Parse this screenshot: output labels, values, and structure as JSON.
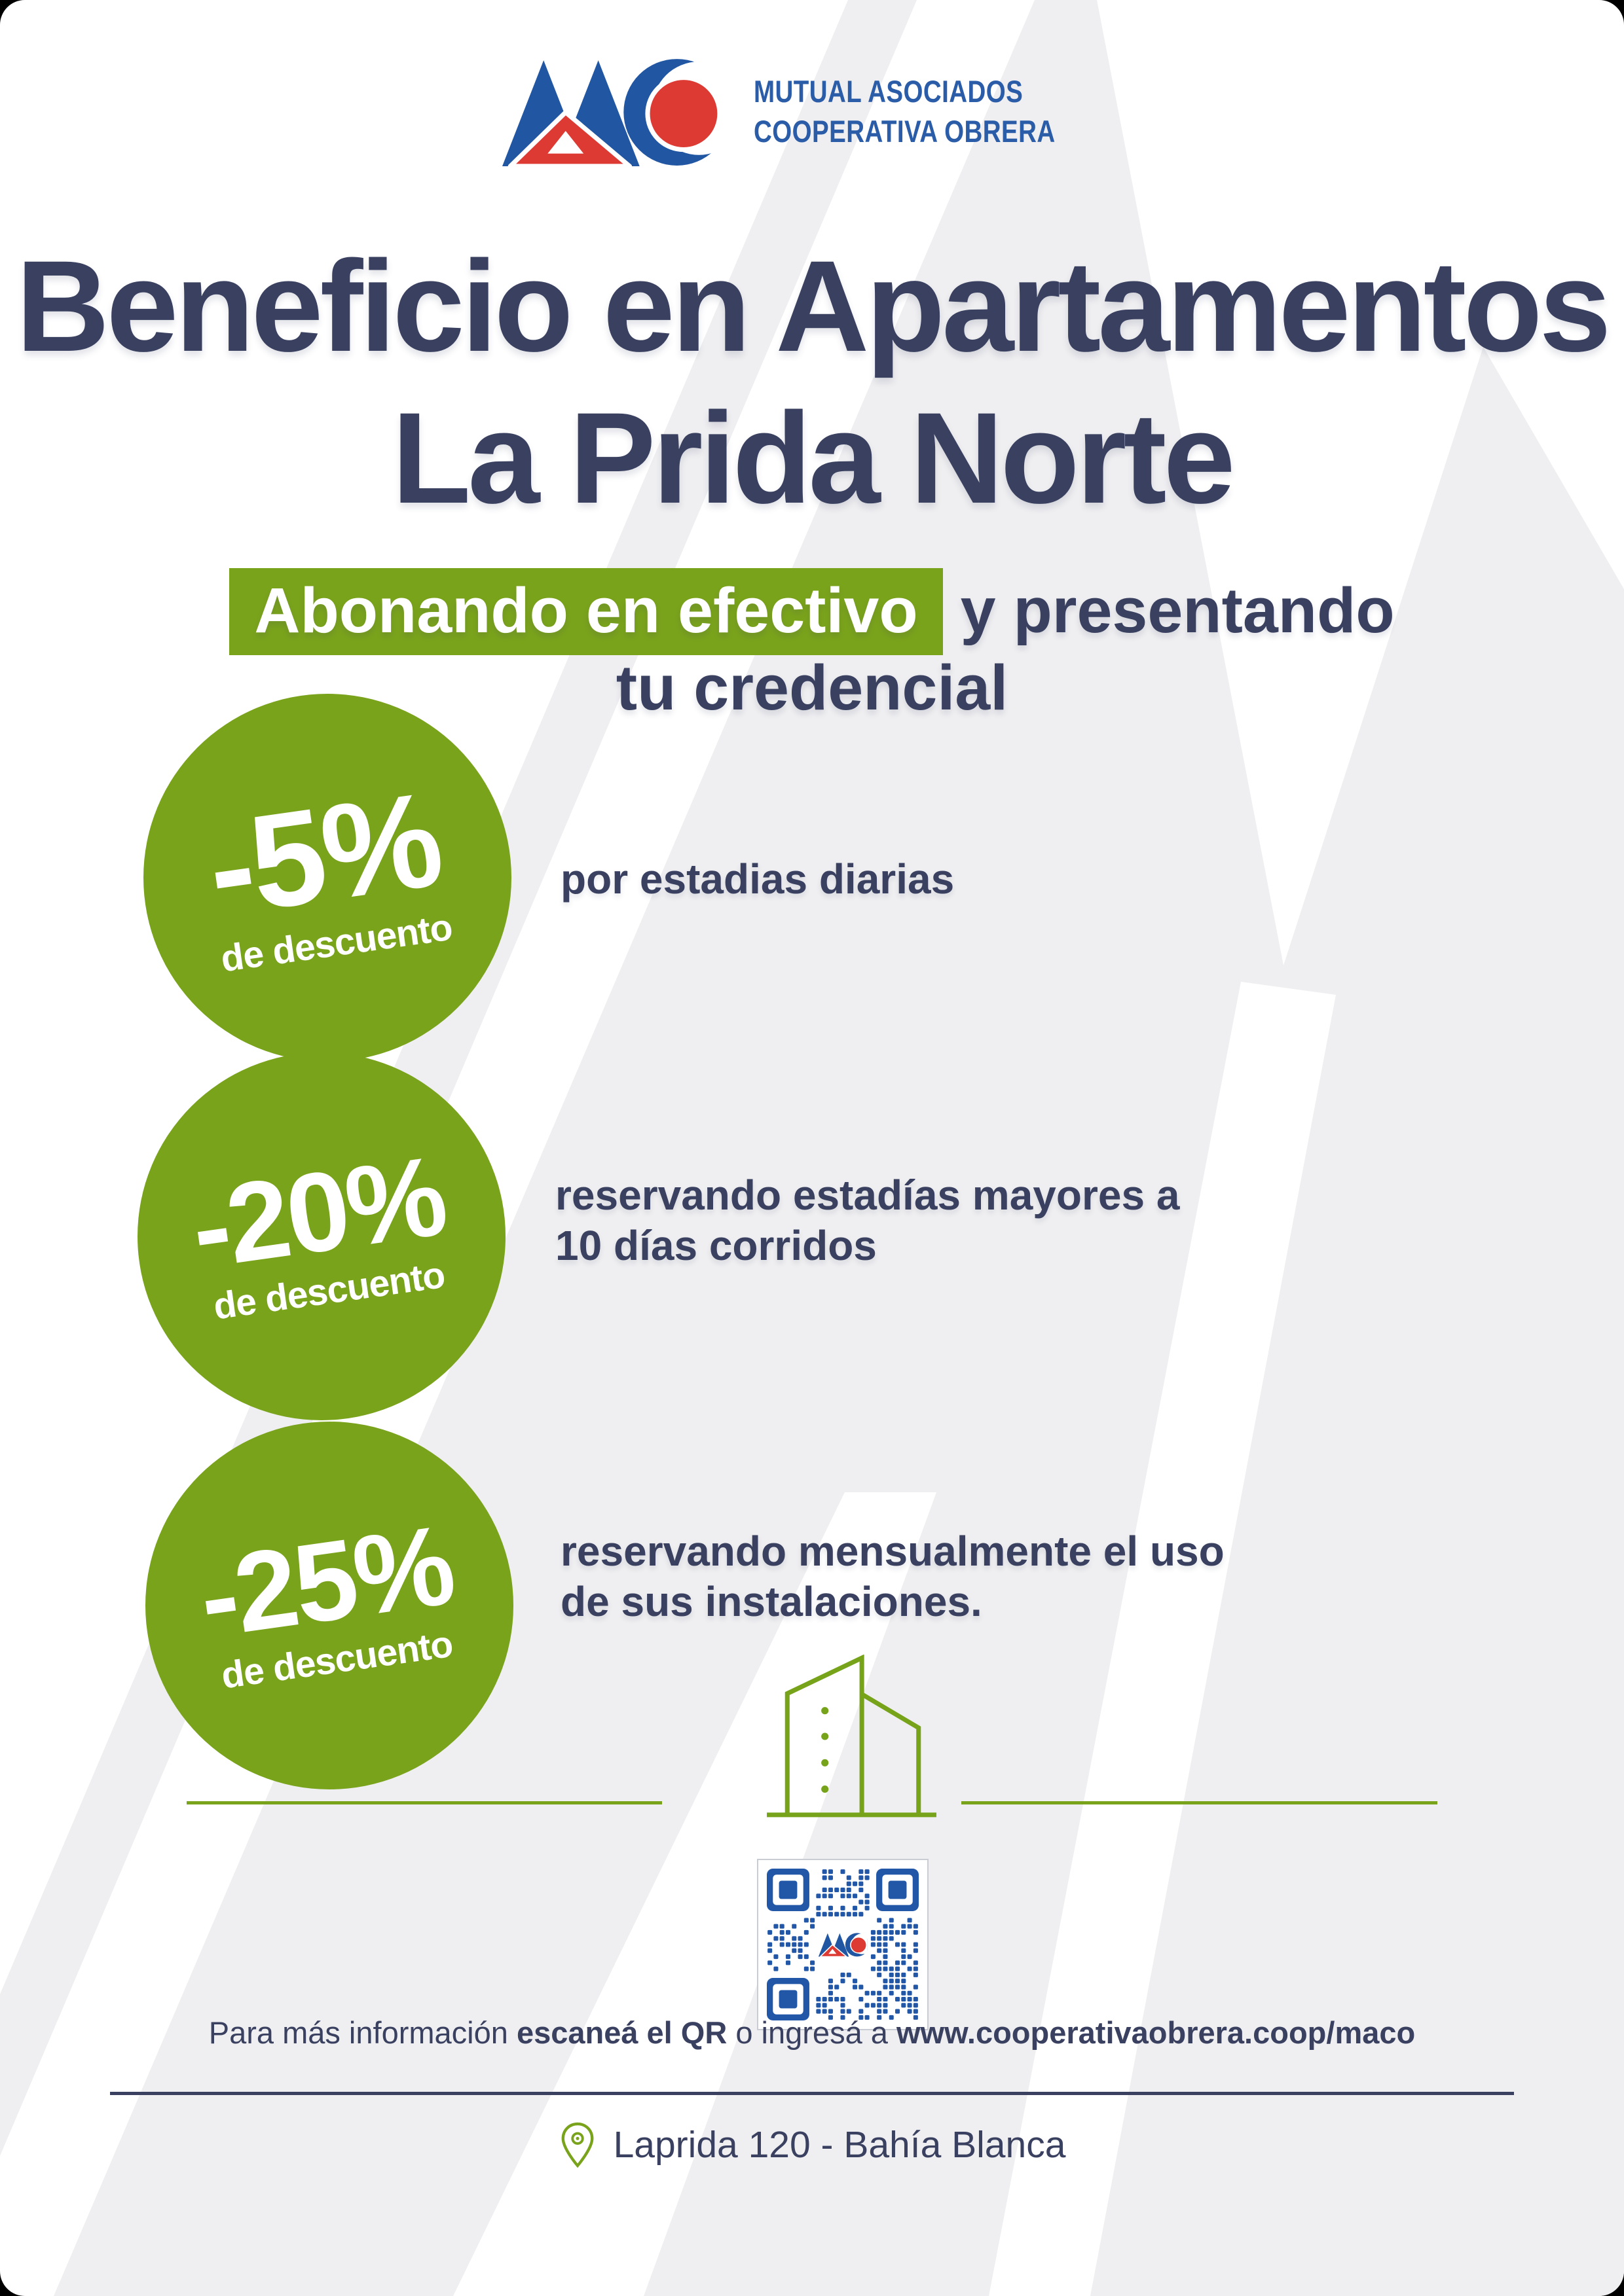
{
  "logo": {
    "mark": "maco-logo-mark",
    "line1": "MUTUAL ASOCIADOS",
    "line2": "COOPERATIVA OBRERA"
  },
  "title": {
    "line1": "Beneficio en Apartamentos",
    "line2": "La Prida Norte"
  },
  "subtitle": {
    "highlight": "Abonando en efectivo",
    "rest": " y presentando",
    "line2": "tu credencial"
  },
  "benefits": [
    {
      "percent": "-5%",
      "label": "de descuento",
      "desc1": "por estadias diarias",
      "desc2": ""
    },
    {
      "percent": "-20%",
      "label": "de descuento",
      "desc1": "reservando estadías mayores a",
      "desc2": "10 días corridos"
    },
    {
      "percent": "-25%",
      "label": "de descuento",
      "desc1": "reservando mensualmente el uso",
      "desc2": "de sus instalaciones."
    }
  ],
  "footer": {
    "info_prefix": "Para más información ",
    "info_bold1": "escaneá el QR",
    "info_middle": " o ingresá a ",
    "info_bold2": "www.cooperativaobrera.coop/maco",
    "address": "Laprida 120 - Bahía Blanca"
  },
  "icons": {
    "building": "building-outline-icon",
    "pin": "location-pin-icon",
    "qr": "qr-code"
  },
  "colors": {
    "accent_green": "#7aa31c",
    "navy": "#3a4160",
    "logo_blue": "#2156a3",
    "logo_text_blue": "#2b5ca8",
    "logo_red": "#dd3a34",
    "qr_blue": "#2257a8",
    "watermark_gray": "#efeff1"
  }
}
